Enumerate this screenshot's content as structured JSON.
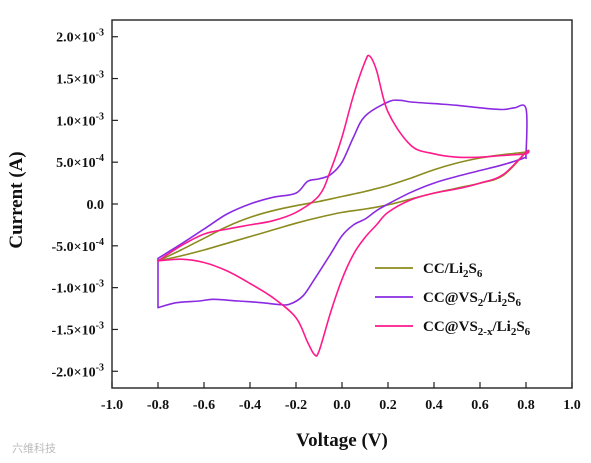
{
  "chart_data": {
    "type": "line",
    "title": "",
    "xlabel": "Voltage (V)",
    "ylabel": "Current (A)",
    "xlim": [
      -1.0,
      1.0
    ],
    "ylim": [
      -0.0022,
      0.0022
    ],
    "x_ticks": [
      -1.0,
      -0.8,
      -0.6,
      -0.4,
      -0.2,
      0.0,
      0.2,
      0.4,
      0.6,
      0.8,
      1.0
    ],
    "x_tick_labels": [
      "-1.0",
      "-0.8",
      "-0.6",
      "-0.4",
      "-0.2",
      "0.0",
      "0.2",
      "0.4",
      "0.6",
      "0.8",
      "1.0"
    ],
    "y_ticks": [
      0.002,
      0.0015,
      0.001,
      0.0005,
      0,
      -0.0005,
      -0.001,
      -0.0015,
      -0.002
    ],
    "y_tick_labels": [
      {
        "mant": "2.0×10",
        "exp": "-3"
      },
      {
        "mant": "1.5×10",
        "exp": "-3"
      },
      {
        "mant": "1.0×10",
        "exp": "-3"
      },
      {
        "mant": "5.0×10",
        "exp": "-4"
      },
      {
        "mant": "0.0",
        "exp": ""
      },
      {
        "mant": "-5.0×10",
        "exp": "-4"
      },
      {
        "mant": "-1.0×10",
        "exp": "-3"
      },
      {
        "mant": "-1.5×10",
        "exp": "-3"
      },
      {
        "mant": "-2.0×10",
        "exp": "-3"
      }
    ],
    "legend_position": "lower-right",
    "series": [
      {
        "name": "CC/Li2S6",
        "legend": [
          {
            "t": "CC/Li"
          },
          {
            "t": "2",
            "sub": true
          },
          {
            "t": "S"
          },
          {
            "t": "6",
            "sub": true
          }
        ],
        "color": "#8b8b1f",
        "x": [
          -0.8,
          -0.7,
          -0.6,
          -0.5,
          -0.4,
          -0.3,
          -0.2,
          -0.1,
          0.0,
          0.1,
          0.2,
          0.3,
          0.4,
          0.5,
          0.6,
          0.7,
          0.8,
          0.8,
          0.7,
          0.6,
          0.5,
          0.4,
          0.3,
          0.2,
          0.1,
          0.0,
          -0.1,
          -0.2,
          -0.3,
          -0.4,
          -0.5,
          -0.6,
          -0.7,
          -0.8
        ],
        "y": [
          -0.00068,
          -0.00062,
          -0.00055,
          -0.00047,
          -0.00039,
          -0.00031,
          -0.00023,
          -0.00016,
          -0.0001,
          -6e-05,
          -1e-05,
          6e-05,
          0.00013,
          0.00019,
          0.00025,
          0.00034,
          0.00062,
          0.00062,
          0.00059,
          0.00055,
          0.00049,
          0.00041,
          0.00031,
          0.00022,
          0.00015,
          9e-05,
          3e-05,
          -2e-05,
          -8e-05,
          -0.00016,
          -0.00027,
          -0.00041,
          -0.00055,
          -0.00068
        ]
      },
      {
        "name": "CC@VS2/Li2S6",
        "legend": [
          {
            "t": "CC@VS"
          },
          {
            "t": "2",
            "sub": true
          },
          {
            "t": "/Li"
          },
          {
            "t": "2",
            "sub": true
          },
          {
            "t": "S"
          },
          {
            "t": "6",
            "sub": true
          }
        ],
        "color": "#8a2be2",
        "x": [
          -0.8,
          -0.72,
          -0.62,
          -0.56,
          -0.45,
          -0.35,
          -0.28,
          -0.23,
          -0.17,
          -0.12,
          -0.05,
          0.0,
          0.05,
          0.1,
          0.15,
          0.2,
          0.3,
          0.4,
          0.5,
          0.6,
          0.7,
          0.79,
          0.8,
          0.8,
          0.75,
          0.7,
          0.6,
          0.5,
          0.4,
          0.3,
          0.25,
          0.2,
          0.1,
          0.05,
          0.0,
          -0.05,
          -0.1,
          -0.15,
          -0.2,
          -0.3,
          -0.4,
          -0.5,
          -0.6,
          -0.7,
          -0.8
        ],
        "y": [
          -0.00124,
          -0.00118,
          -0.00116,
          -0.00114,
          -0.00116,
          -0.00118,
          -0.0012,
          -0.0012,
          -0.0011,
          -0.0009,
          -0.0006,
          -0.00038,
          -0.00025,
          -0.00018,
          -8e-05,
          0.0,
          0.00014,
          0.00025,
          0.00033,
          0.0004,
          0.00047,
          0.00055,
          0.0006,
          0.00114,
          0.00115,
          0.00113,
          0.00115,
          0.00118,
          0.0012,
          0.00122,
          0.00124,
          0.00122,
          0.00105,
          0.0008,
          0.0005,
          0.00035,
          0.0003,
          0.00027,
          0.00013,
          8e-05,
          0.0,
          -0.00012,
          -0.0003,
          -0.00048,
          -0.00065
        ]
      },
      {
        "name": "CC@VS2-x/Li2S6",
        "legend": [
          {
            "t": "CC@VS"
          },
          {
            "t": "2-x",
            "sub": true
          },
          {
            "t": "/Li"
          },
          {
            "t": "2",
            "sub": true
          },
          {
            "t": "S"
          },
          {
            "t": "6",
            "sub": true
          }
        ],
        "color": "#ff1a8c",
        "x": [
          -0.8,
          -0.7,
          -0.6,
          -0.5,
          -0.4,
          -0.3,
          -0.2,
          -0.15,
          -0.12,
          -0.1,
          -0.05,
          0.0,
          0.05,
          0.1,
          0.15,
          0.2,
          0.3,
          0.4,
          0.5,
          0.6,
          0.7,
          0.8,
          0.8,
          0.7,
          0.6,
          0.5,
          0.4,
          0.3,
          0.2,
          0.15,
          0.12,
          0.1,
          0.05,
          0.0,
          -0.05,
          -0.1,
          -0.2,
          -0.3,
          -0.4,
          -0.5,
          -0.6,
          -0.7,
          -0.8
        ],
        "y": [
          -0.00068,
          -0.00066,
          -0.0007,
          -0.0008,
          -0.00095,
          -0.00112,
          -0.00136,
          -0.00165,
          -0.0018,
          -0.00176,
          -0.0013,
          -0.0009,
          -0.0006,
          -0.0004,
          -0.00025,
          -0.0001,
          5e-05,
          0.00013,
          0.00018,
          0.00025,
          0.00035,
          0.00062,
          0.0006,
          0.00058,
          0.00056,
          0.00056,
          0.0006,
          0.0007,
          0.0011,
          0.0016,
          0.00177,
          0.0017,
          0.0013,
          0.0008,
          0.0004,
          0.0001,
          -0.0001,
          -0.0002,
          -0.00025,
          -0.0003,
          -0.00036,
          -0.0005,
          -0.00068
        ]
      }
    ]
  },
  "watermark": "六维科技"
}
